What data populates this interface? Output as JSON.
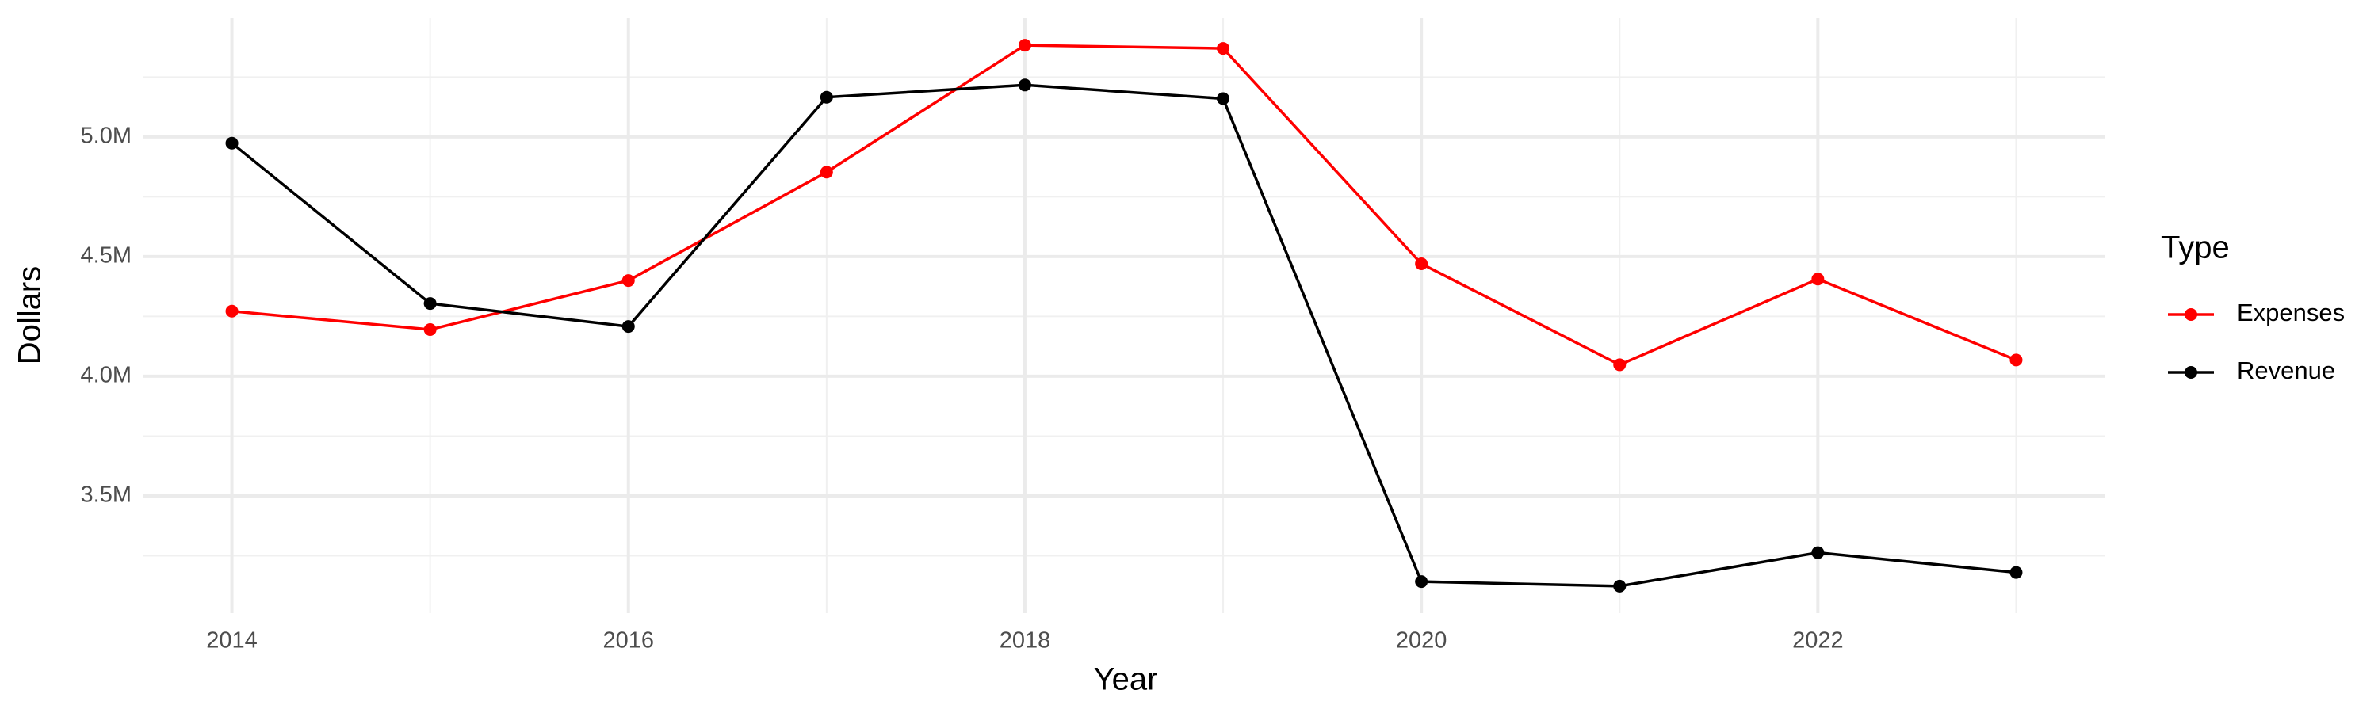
{
  "chart_data": {
    "type": "line",
    "x_label": "Year",
    "y_label": "Dollars",
    "legend_title": "Type",
    "x": [
      2014,
      2015,
      2016,
      2017,
      2018,
      2019,
      2020,
      2021,
      2022,
      2023
    ],
    "series": [
      {
        "name": "Expenses",
        "color": "#ff0000",
        "values": [
          4272000,
          4195000,
          4400000,
          4853000,
          5383000,
          5370000,
          4470000,
          4048000,
          4406000,
          4068000
        ]
      },
      {
        "name": "Revenue",
        "color": "#000000",
        "values": [
          4974000,
          4304000,
          4208000,
          5166000,
          5217000,
          5160000,
          3142000,
          3123000,
          3263000,
          3180000
        ]
      }
    ],
    "xlim": [
      2013.55,
      2023.45
    ],
    "xticks": [
      2014,
      2016,
      2018,
      2020,
      2022
    ],
    "ylim": [
      3010000,
      5496000
    ],
    "yticks": [
      {
        "value": 3500000,
        "label": "3.5M"
      },
      {
        "value": 4000000,
        "label": "4.0M"
      },
      {
        "value": 4500000,
        "label": "4.5M"
      },
      {
        "value": 5000000,
        "label": "5.0M"
      }
    ],
    "grid": true,
    "legend": "right"
  }
}
